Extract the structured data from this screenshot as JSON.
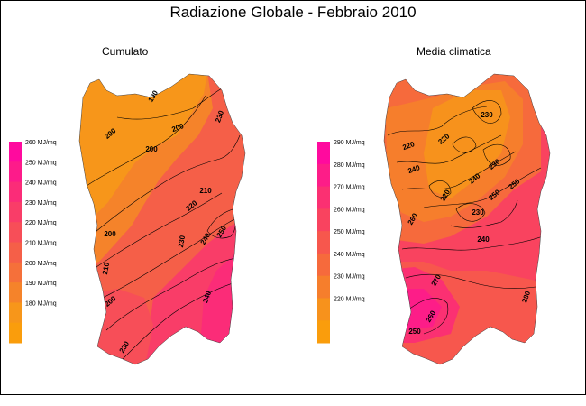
{
  "title": "Radiazione Globale - Febbraio 2010",
  "panels": [
    {
      "id": "cumulato",
      "title": "Cumulato",
      "legend": {
        "labels": [
          "260 MJ/mq",
          "250 MJ/mq",
          "240 MJ/mq",
          "230 MJ/mq",
          "220 MJ/mq",
          "210 MJ/mq",
          "200 MJ/mq",
          "190 MJ/mq",
          "180 MJ/mq"
        ],
        "colors": [
          "#ff0a9e",
          "#fd1b8a",
          "#fb2c78",
          "#f93d68",
          "#f74e58",
          "#f55f48",
          "#f5703a",
          "#f5832a",
          "#f7961a",
          "#fa9d0c"
        ]
      },
      "contour_labels": [
        "190",
        "200",
        "200",
        "200",
        "210",
        "220",
        "230",
        "240",
        "250",
        "200",
        "200",
        "210",
        "230",
        "240",
        "230"
      ]
    },
    {
      "id": "media",
      "title": "Media climatica",
      "legend": {
        "labels": [
          "290 MJ/mq",
          "280 MJ/mq",
          "270 MJ/mq",
          "260 MJ/mq",
          "250 MJ/mq",
          "240 MJ/mq",
          "230 MJ/mq",
          "220 MJ/mq"
        ],
        "colors": [
          "#ff0a9e",
          "#fd1d88",
          "#fb3072",
          "#f9435f",
          "#f7574d",
          "#f66a3c",
          "#f67e2c",
          "#f7921c",
          "#fa9d0c"
        ]
      },
      "contour_labels": [
        "220",
        "230",
        "240",
        "220",
        "230",
        "240",
        "250",
        "220",
        "230",
        "240",
        "250",
        "260",
        "270",
        "250",
        "260",
        "280"
      ]
    }
  ]
}
